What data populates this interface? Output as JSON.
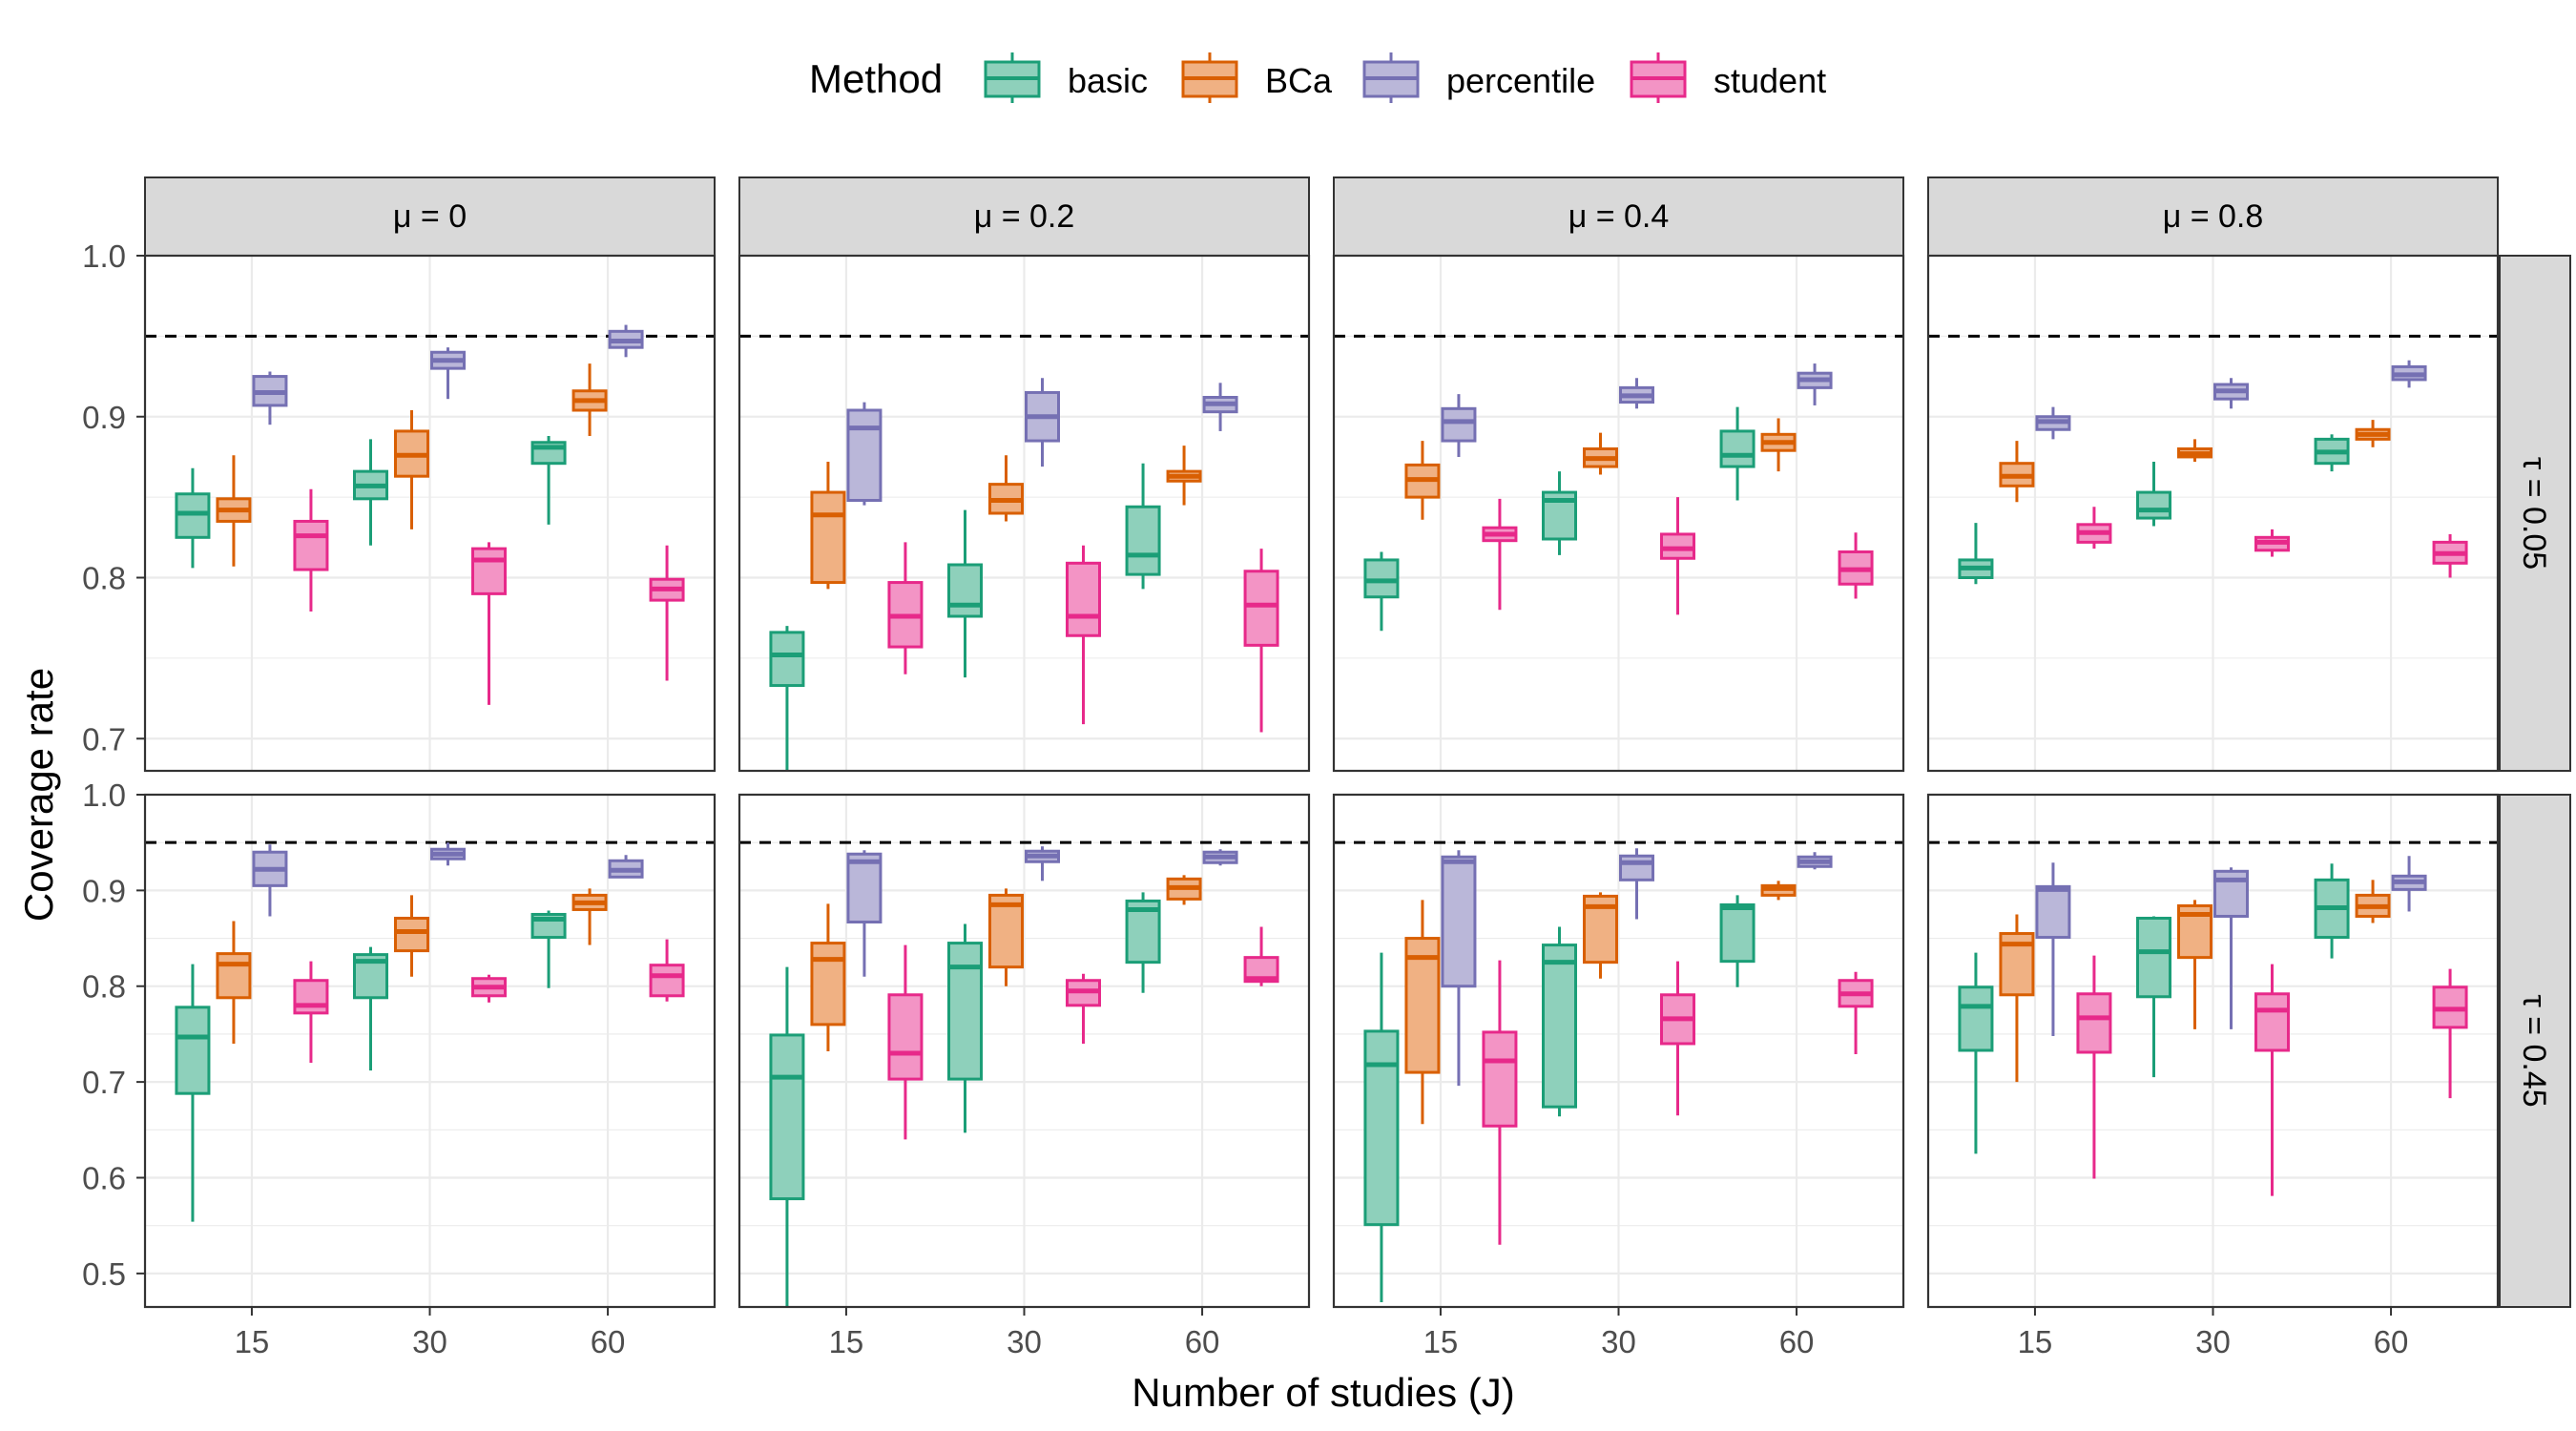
{
  "chart_data": {
    "type": "box",
    "xlabel": "Number of studies (J)",
    "ylabel": "Coverage rate",
    "legend": {
      "title": "Method",
      "placement": "top",
      "entries": [
        "basic",
        "BCa",
        "percentile",
        "student"
      ]
    },
    "colors": {
      "basic": {
        "stroke": "#1b9e77",
        "fill": "#8ed0bb"
      },
      "BCa": {
        "stroke": "#d95f02",
        "fill": "#f0b183"
      },
      "percentile": {
        "stroke": "#7570b3",
        "fill": "#bab7d9"
      },
      "student": {
        "stroke": "#e7298a",
        "fill": "#f394c5"
      }
    },
    "reference_line": 0.95,
    "x_categories": [
      "15",
      "30",
      "60"
    ],
    "columns": [
      "μ = 0",
      "μ = 0.2",
      "μ = 0.4",
      "μ = 0.8"
    ],
    "rows": [
      {
        "label": "τ = 0.05",
        "ylim": [
          0.68,
          1.0
        ],
        "ticks": [
          "0.7",
          "0.8",
          "0.9",
          "1.0"
        ]
      },
      {
        "label": "τ = 0.45",
        "ylim": [
          0.465,
          1.0
        ],
        "ticks": [
          "0.5",
          "0.6",
          "0.7",
          "0.8",
          "0.9",
          "1.0"
        ]
      }
    ],
    "boxes": [
      [
        [
          [
            [
              0.806,
              0.825,
              0.84,
              0.852,
              0.868
            ],
            [
              0.807,
              0.835,
              0.842,
              0.849,
              0.876
            ],
            [
              0.895,
              0.907,
              0.915,
              0.925,
              0.928
            ],
            [
              0.779,
              0.805,
              0.826,
              0.835,
              0.855
            ]
          ],
          [
            [
              0.82,
              0.849,
              0.857,
              0.866,
              0.886
            ],
            [
              0.83,
              0.863,
              0.876,
              0.891,
              0.904
            ],
            [
              0.911,
              0.93,
              0.935,
              0.94,
              0.943
            ],
            [
              0.721,
              0.79,
              0.811,
              0.818,
              0.822
            ]
          ],
          [
            [
              0.833,
              0.871,
              0.881,
              0.884,
              0.888
            ],
            [
              0.888,
              0.904,
              0.91,
              0.916,
              0.933
            ],
            [
              0.937,
              0.943,
              0.947,
              0.953,
              0.957
            ],
            [
              0.736,
              0.786,
              0.793,
              0.799,
              0.82
            ]
          ]
        ],
        [
          [
            [
              0.68,
              0.733,
              0.752,
              0.766,
              0.77
            ],
            [
              0.793,
              0.797,
              0.839,
              0.853,
              0.872
            ],
            [
              0.845,
              0.848,
              0.893,
              0.904,
              0.909
            ],
            [
              0.74,
              0.757,
              0.776,
              0.797,
              0.822
            ]
          ],
          [
            [
              0.738,
              0.776,
              0.783,
              0.808,
              0.842
            ],
            [
              0.835,
              0.84,
              0.848,
              0.858,
              0.876
            ],
            [
              0.869,
              0.885,
              0.9,
              0.915,
              0.924
            ],
            [
              0.709,
              0.764,
              0.776,
              0.809,
              0.82
            ]
          ],
          [
            [
              0.793,
              0.802,
              0.814,
              0.844,
              0.871
            ],
            [
              0.845,
              0.86,
              0.863,
              0.866,
              0.882
            ],
            [
              0.891,
              0.903,
              0.908,
              0.912,
              0.921
            ],
            [
              0.704,
              0.758,
              0.783,
              0.804,
              0.818
            ]
          ]
        ],
        [
          [
            [
              0.767,
              0.788,
              0.798,
              0.811,
              0.816
            ],
            [
              0.836,
              0.85,
              0.861,
              0.87,
              0.885
            ],
            [
              0.875,
              0.885,
              0.897,
              0.905,
              0.914
            ],
            [
              0.78,
              0.823,
              0.827,
              0.831,
              0.849
            ]
          ],
          [
            [
              0.814,
              0.824,
              0.848,
              0.853,
              0.866
            ],
            [
              0.864,
              0.869,
              0.874,
              0.88,
              0.89
            ],
            [
              0.905,
              0.909,
              0.913,
              0.918,
              0.924
            ],
            [
              0.777,
              0.812,
              0.818,
              0.827,
              0.85
            ]
          ],
          [
            [
              0.848,
              0.869,
              0.876,
              0.891,
              0.906
            ],
            [
              0.866,
              0.879,
              0.884,
              0.889,
              0.899
            ],
            [
              0.907,
              0.918,
              0.923,
              0.927,
              0.933
            ],
            [
              0.787,
              0.796,
              0.805,
              0.816,
              0.828
            ]
          ]
        ],
        [
          [
            [
              0.796,
              0.8,
              0.806,
              0.811,
              0.834
            ],
            [
              0.847,
              0.857,
              0.863,
              0.871,
              0.885
            ],
            [
              0.886,
              0.892,
              0.897,
              0.9,
              0.906
            ],
            [
              0.818,
              0.822,
              0.828,
              0.833,
              0.844
            ]
          ],
          [
            [
              0.832,
              0.837,
              0.842,
              0.853,
              0.872
            ],
            [
              0.872,
              0.875,
              0.877,
              0.88,
              0.886
            ],
            [
              0.905,
              0.911,
              0.916,
              0.92,
              0.924
            ],
            [
              0.813,
              0.817,
              0.822,
              0.825,
              0.83
            ]
          ],
          [
            [
              0.866,
              0.871,
              0.878,
              0.886,
              0.889
            ],
            [
              0.881,
              0.886,
              0.889,
              0.892,
              0.898
            ],
            [
              0.918,
              0.923,
              0.926,
              0.931,
              0.935
            ],
            [
              0.8,
              0.809,
              0.815,
              0.822,
              0.827
            ]
          ]
        ]
      ],
      [
        [
          [
            [
              0.554,
              0.688,
              0.747,
              0.778,
              0.823
            ],
            [
              0.74,
              0.788,
              0.823,
              0.834,
              0.868
            ],
            [
              0.873,
              0.905,
              0.922,
              0.94,
              0.948
            ],
            [
              0.72,
              0.772,
              0.78,
              0.806,
              0.826
            ]
          ],
          [
            [
              0.712,
              0.788,
              0.826,
              0.833,
              0.841
            ],
            [
              0.81,
              0.837,
              0.857,
              0.871,
              0.895
            ],
            [
              0.926,
              0.933,
              0.938,
              0.943,
              0.95
            ],
            [
              0.783,
              0.79,
              0.799,
              0.808,
              0.812
            ]
          ],
          [
            [
              0.798,
              0.851,
              0.87,
              0.875,
              0.879
            ],
            [
              0.843,
              0.88,
              0.887,
              0.895,
              0.902
            ],
            [
              0.913,
              0.914,
              0.921,
              0.931,
              0.937
            ],
            [
              0.784,
              0.79,
              0.811,
              0.822,
              0.849
            ]
          ]
        ],
        [
          [
            [
              0.465,
              0.578,
              0.705,
              0.749,
              0.82
            ],
            [
              0.732,
              0.76,
              0.828,
              0.845,
              0.886
            ],
            [
              0.81,
              0.867,
              0.93,
              0.938,
              0.942
            ],
            [
              0.64,
              0.703,
              0.73,
              0.791,
              0.843
            ]
          ],
          [
            [
              0.647,
              0.703,
              0.82,
              0.845,
              0.865
            ],
            [
              0.8,
              0.82,
              0.885,
              0.895,
              0.902
            ],
            [
              0.91,
              0.93,
              0.936,
              0.941,
              0.946
            ],
            [
              0.74,
              0.78,
              0.795,
              0.806,
              0.813
            ]
          ],
          [
            [
              0.793,
              0.825,
              0.88,
              0.889,
              0.898
            ],
            [
              0.885,
              0.891,
              0.903,
              0.912,
              0.916
            ],
            [
              0.926,
              0.929,
              0.935,
              0.94,
              0.943
            ],
            [
              0.8,
              0.805,
              0.808,
              0.83,
              0.862
            ]
          ]
        ],
        [
          [
            [
              0.47,
              0.551,
              0.718,
              0.753,
              0.835
            ],
            [
              0.656,
              0.71,
              0.83,
              0.85,
              0.89
            ],
            [
              0.696,
              0.8,
              0.93,
              0.935,
              0.942
            ],
            [
              0.53,
              0.654,
              0.722,
              0.752,
              0.827
            ]
          ],
          [
            [
              0.664,
              0.674,
              0.825,
              0.843,
              0.862
            ],
            [
              0.808,
              0.825,
              0.883,
              0.894,
              0.898
            ],
            [
              0.87,
              0.911,
              0.929,
              0.936,
              0.944
            ],
            [
              0.665,
              0.74,
              0.766,
              0.791,
              0.826
            ]
          ],
          [
            [
              0.799,
              0.826,
              0.882,
              0.885,
              0.895
            ],
            [
              0.89,
              0.895,
              0.902,
              0.905,
              0.91
            ],
            [
              0.922,
              0.925,
              0.93,
              0.935,
              0.94
            ],
            [
              0.729,
              0.779,
              0.792,
              0.806,
              0.815
            ]
          ]
        ],
        [
          [
            [
              0.625,
              0.733,
              0.779,
              0.799,
              0.835
            ],
            [
              0.7,
              0.791,
              0.844,
              0.855,
              0.875
            ],
            [
              0.748,
              0.851,
              0.901,
              0.904,
              0.929
            ],
            [
              0.599,
              0.731,
              0.767,
              0.792,
              0.832
            ]
          ],
          [
            [
              0.705,
              0.789,
              0.836,
              0.871,
              0.873
            ],
            [
              0.755,
              0.83,
              0.875,
              0.884,
              0.89
            ],
            [
              0.755,
              0.873,
              0.911,
              0.92,
              0.924
            ],
            [
              0.581,
              0.733,
              0.775,
              0.792,
              0.823
            ]
          ],
          [
            [
              0.829,
              0.851,
              0.882,
              0.911,
              0.928
            ],
            [
              0.866,
              0.873,
              0.883,
              0.895,
              0.911
            ],
            [
              0.878,
              0.901,
              0.909,
              0.915,
              0.936
            ],
            [
              0.683,
              0.757,
              0.776,
              0.799,
              0.818
            ]
          ]
        ]
      ]
    ]
  }
}
